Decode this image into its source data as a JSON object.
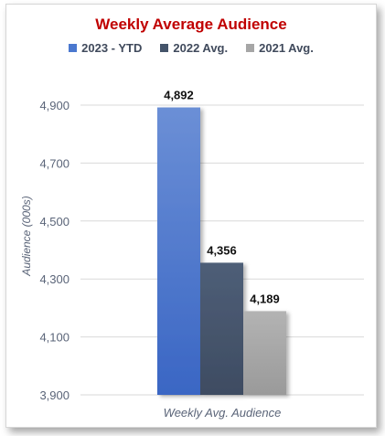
{
  "chart_data": {
    "type": "bar",
    "title": "Weekly Average Audience",
    "categories": [
      "Weekly Avg. Audience"
    ],
    "series": [
      {
        "name": "2023 - YTD",
        "values": [
          4892
        ],
        "data_label": "4,892",
        "color": "#4a78cf"
      },
      {
        "name": "2022 Avg.",
        "values": [
          4356
        ],
        "data_label": "4,356",
        "color": "#44546a"
      },
      {
        "name": "2021 Avg.",
        "values": [
          4189
        ],
        "data_label": "4,189",
        "color": "#a6a6a6"
      }
    ],
    "ylabel": "Audience (000s)",
    "xlabel": "Weekly Avg. Audience",
    "ylim": [
      3900,
      4900
    ],
    "yticks": [
      {
        "value": 3900,
        "label": "3,900"
      },
      {
        "value": 4100,
        "label": "4,100"
      },
      {
        "value": 4300,
        "label": "4,300"
      },
      {
        "value": 4500,
        "label": "4,500"
      },
      {
        "value": 4700,
        "label": "4,700"
      },
      {
        "value": 4900,
        "label": "4,900"
      }
    ],
    "grid": true,
    "legend_position": "top"
  }
}
